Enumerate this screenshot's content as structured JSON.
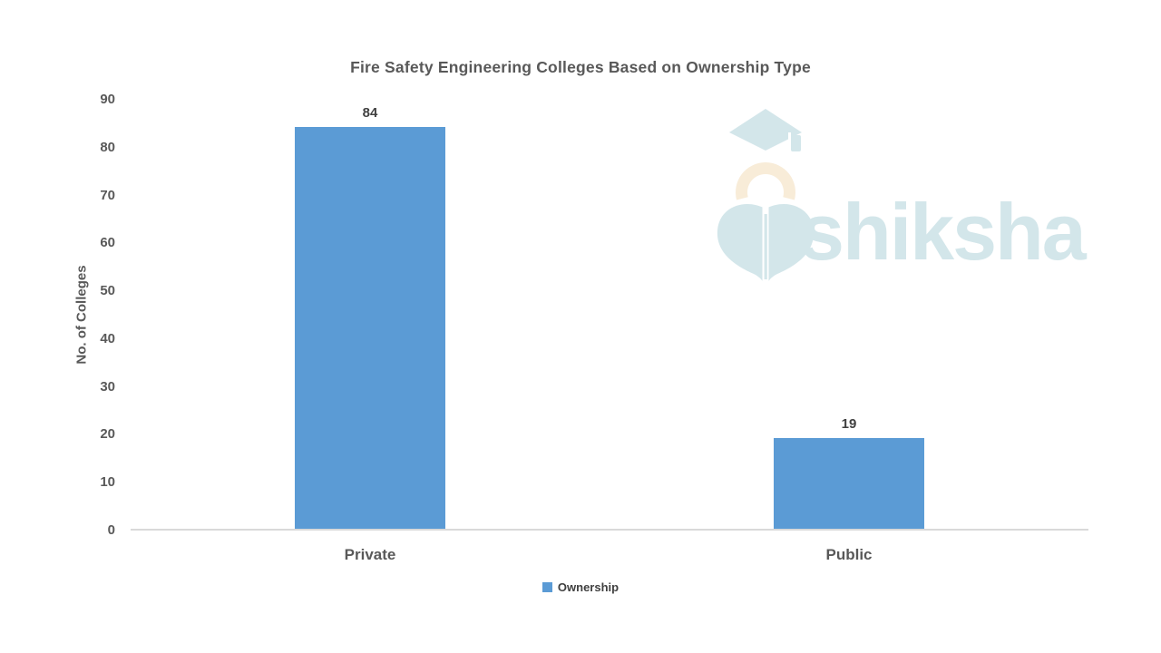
{
  "page": {
    "background": "#ffffff"
  },
  "chart_data": {
    "type": "bar",
    "title": "Fire Safety Engineering Colleges Based on Ownership Type",
    "categories": [
      "Private",
      "Public"
    ],
    "series": [
      {
        "name": "Ownership",
        "values": [
          84,
          19
        ],
        "color": "#5B9BD5"
      }
    ],
    "data_labels": [
      "84",
      "19"
    ],
    "xlabel": "",
    "ylabel": "No. of Colleges",
    "ylim": [
      0,
      90
    ],
    "yticks": [
      0,
      10,
      20,
      30,
      40,
      50,
      60,
      70,
      80,
      90
    ],
    "grid": false,
    "plot_background": "#ffffff",
    "legend": {
      "position": "bottom",
      "entries": [
        {
          "label": "Ownership",
          "color": "#5B9BD5"
        }
      ]
    }
  },
  "colors": {
    "bar": "#5B9BD5",
    "axis_line": "#D9D9D9",
    "heading_text": "#595959",
    "value_text": "#404040",
    "watermark_teal": "#D3E6EA",
    "watermark_cream": "#F8ECD8"
  },
  "watermark": {
    "brand": "shiksha",
    "icon": "shiksha-graduation-cap-pen-logo"
  }
}
